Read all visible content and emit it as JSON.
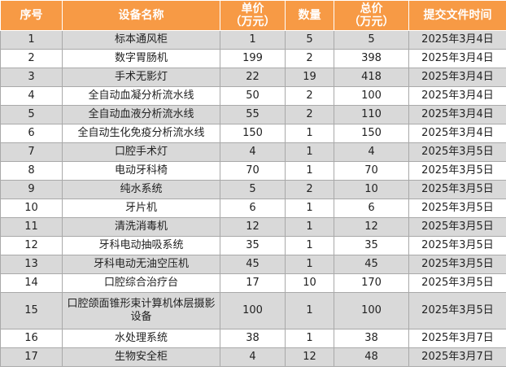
{
  "columns": [
    {
      "key": "no",
      "label": "序号"
    },
    {
      "key": "name",
      "label": "设备名称"
    },
    {
      "key": "unit_price",
      "label": "单价\n（万元）"
    },
    {
      "key": "qty",
      "label": "数量"
    },
    {
      "key": "total",
      "label": "总价\n（万元）"
    },
    {
      "key": "date",
      "label": "提交文件时间"
    }
  ],
  "colors": {
    "header_bg": "#f79a45",
    "row_shaded": "#d9d9d9",
    "row_plain": "#ffffff"
  },
  "rows": [
    {
      "no": "1",
      "name": "标本通风柜",
      "unit_price": "1",
      "qty": "5",
      "total": "5",
      "date": "2025年3月4日"
    },
    {
      "no": "2",
      "name": "数字胃肠机",
      "unit_price": "199",
      "qty": "2",
      "total": "398",
      "date": "2025年3月4日"
    },
    {
      "no": "3",
      "name": "手术无影灯",
      "unit_price": "22",
      "qty": "19",
      "total": "418",
      "date": "2025年3月4日"
    },
    {
      "no": "4",
      "name": "全自动血凝分析流水线",
      "unit_price": "50",
      "qty": "2",
      "total": "100",
      "date": "2025年3月4日"
    },
    {
      "no": "5",
      "name": "全自动血液分析流水线",
      "unit_price": "55",
      "qty": "2",
      "total": "110",
      "date": "2025年3月4日"
    },
    {
      "no": "6",
      "name": "全自动生化免疫分析流水线",
      "unit_price": "150",
      "qty": "1",
      "total": "150",
      "date": "2025年3月4日"
    },
    {
      "no": "7",
      "name": "口腔手术灯",
      "unit_price": "4",
      "qty": "1",
      "total": "4",
      "date": "2025年3月5日"
    },
    {
      "no": "8",
      "name": "电动牙科椅",
      "unit_price": "70",
      "qty": "1",
      "total": "70",
      "date": "2025年3月5日"
    },
    {
      "no": "9",
      "name": "纯水系统",
      "unit_price": "5",
      "qty": "2",
      "total": "10",
      "date": "2025年3月5日"
    },
    {
      "no": "10",
      "name": "牙片机",
      "unit_price": "6",
      "qty": "1",
      "total": "6",
      "date": "2025年3月5日"
    },
    {
      "no": "11",
      "name": "清洗消毒机",
      "unit_price": "12",
      "qty": "1",
      "total": "12",
      "date": "2025年3月5日"
    },
    {
      "no": "12",
      "name": "牙科电动抽吸系统",
      "unit_price": "35",
      "qty": "1",
      "total": "35",
      "date": "2025年3月5日"
    },
    {
      "no": "13",
      "name": "牙科电动无油空压机",
      "unit_price": "45",
      "qty": "1",
      "total": "45",
      "date": "2025年3月5日"
    },
    {
      "no": "14",
      "name": "口腔综合治疗台",
      "unit_price": "17",
      "qty": "10",
      "total": "170",
      "date": "2025年3月5日"
    },
    {
      "no": "15",
      "name": "口腔颌面锥形束计算机体层摄影设备",
      "unit_price": "100",
      "qty": "1",
      "total": "100",
      "date": "2025年3月5日"
    },
    {
      "no": "16",
      "name": "水处理系统",
      "unit_price": "38",
      "qty": "1",
      "total": "38",
      "date": "2025年3月7日"
    },
    {
      "no": "17",
      "name": "生物安全柜",
      "unit_price": "4",
      "qty": "12",
      "total": "48",
      "date": "2025年3月7日"
    }
  ]
}
